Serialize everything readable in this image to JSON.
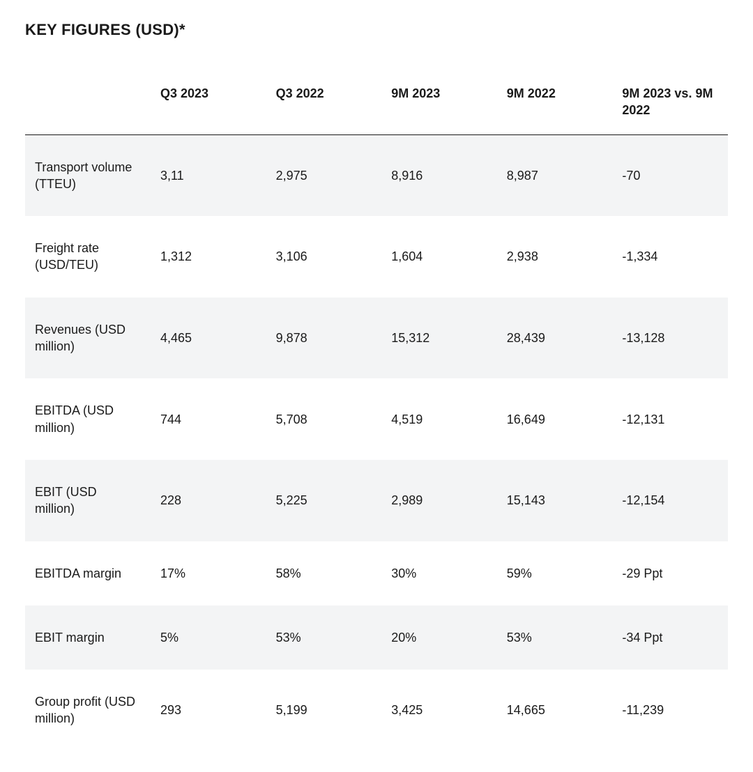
{
  "title": "KEY FIGURES (USD)*",
  "table": {
    "columns": [
      "",
      "Q3 2023",
      "Q3 2022",
      "9M 2023",
      "9M 2022",
      "9M 2023 vs. 9M 2022"
    ],
    "column_widths": [
      "180px",
      "auto",
      "auto",
      "auto",
      "auto",
      "auto"
    ],
    "rows": [
      {
        "label": "Transport volume (TTEU)",
        "values": [
          "3,11",
          "2,975",
          "8,916",
          "8,987",
          "-70"
        ],
        "striped": true
      },
      {
        "label": "Freight rate (USD/TEU)",
        "values": [
          "1,312",
          "3,106",
          "1,604",
          "2,938",
          "-1,334"
        ],
        "striped": false
      },
      {
        "label": "Revenues (USD million)",
        "values": [
          "4,465",
          "9,878",
          "15,312",
          "28,439",
          "-13,128"
        ],
        "striped": true
      },
      {
        "label": "EBITDA (USD million)",
        "values": [
          "744",
          "5,708",
          "4,519",
          "16,649",
          "-12,131"
        ],
        "striped": false
      },
      {
        "label": "EBIT (USD million)",
        "values": [
          "228",
          "5,225",
          "2,989",
          "15,143",
          "-12,154"
        ],
        "striped": true
      },
      {
        "label": "EBITDA margin",
        "values": [
          "17%",
          "58%",
          "30%",
          "59%",
          "-29 Ppt"
        ],
        "striped": false
      },
      {
        "label": "EBIT margin",
        "values": [
          "5%",
          "53%",
          "20%",
          "53%",
          "-34 Ppt"
        ],
        "striped": true
      },
      {
        "label": "Group profit (USD million)",
        "values": [
          "293",
          "5,199",
          "3,425",
          "14,665",
          "-11,239"
        ],
        "striped": false
      }
    ],
    "stripe_color": "#f3f4f5",
    "background_color": "#ffffff",
    "text_color": "#1a1a1a",
    "header_border_color": "#1a1a1a",
    "font_size_body": 18,
    "font_size_header": 18,
    "font_size_title": 22
  }
}
